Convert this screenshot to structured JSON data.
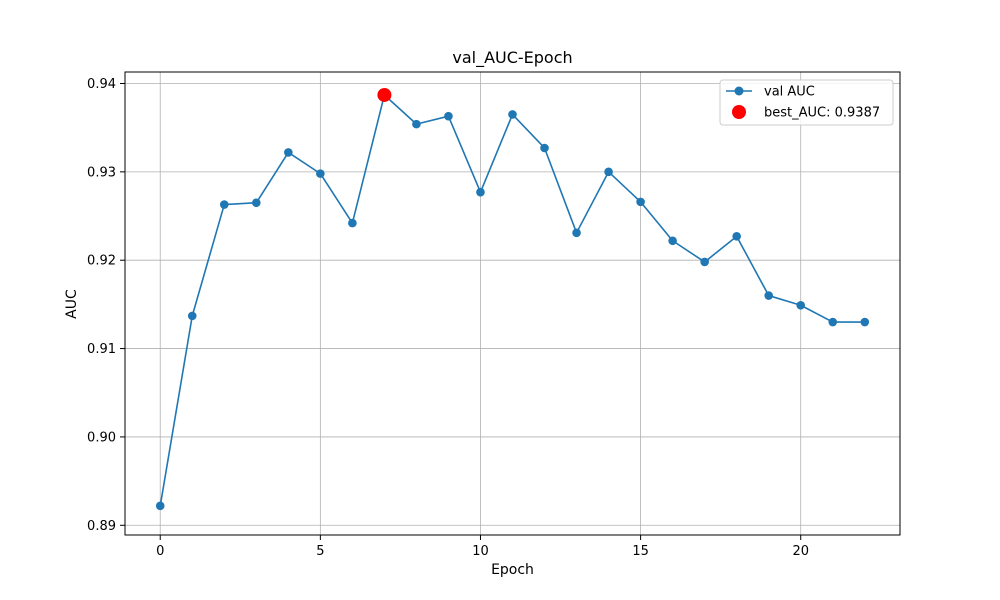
{
  "chart_data": {
    "type": "line",
    "title": "val_AUC-Epoch",
    "xlabel": "Epoch",
    "ylabel": "AUC",
    "xlim": [
      -1.1,
      23.1
    ],
    "ylim": [
      0.8889,
      0.9413
    ],
    "xticks": [
      0,
      5,
      10,
      15,
      20
    ],
    "xtick_labels": [
      "0",
      "5",
      "10",
      "15",
      "20"
    ],
    "yticks": [
      0.89,
      0.9,
      0.91,
      0.92,
      0.93,
      0.94
    ],
    "ytick_labels": [
      "0.89",
      "0.90",
      "0.91",
      "0.92",
      "0.93",
      "0.94"
    ],
    "grid": true,
    "legend_position": "top-right",
    "series": [
      {
        "name": "val AUC",
        "color": "#1f77b4",
        "marker": "circle",
        "x": [
          0,
          1,
          2,
          3,
          4,
          5,
          6,
          7,
          8,
          9,
          10,
          11,
          12,
          13,
          14,
          15,
          16,
          17,
          18,
          19,
          20,
          21,
          22
        ],
        "y": [
          0.8922,
          0.9137,
          0.9263,
          0.9265,
          0.9322,
          0.9298,
          0.9242,
          0.9387,
          0.9354,
          0.9363,
          0.9277,
          0.9365,
          0.9327,
          0.9231,
          0.93,
          0.9266,
          0.9222,
          0.9198,
          0.9227,
          0.916,
          0.9149,
          0.913,
          0.913
        ]
      }
    ],
    "highlight": {
      "name": "best_AUC: 0.9387",
      "color": "#ff0000",
      "x": 7,
      "y": 0.9387
    }
  }
}
